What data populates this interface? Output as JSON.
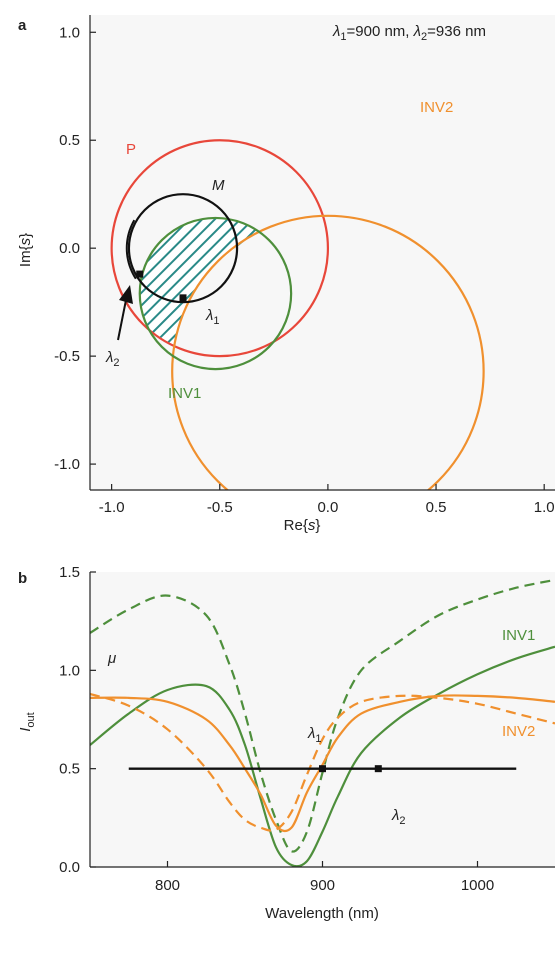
{
  "colors": {
    "red": "#e8473a",
    "orange": "#f0902e",
    "green": "#4e8f3c",
    "black": "#111111",
    "teal": "#2a8a88",
    "panel_bg": "#f7f7f7"
  },
  "chart_data": [
    {
      "panel": "a",
      "type": "scatter",
      "xlabel": {
        "pre": "Re{",
        "var": "s",
        "post": "}"
      },
      "ylabel": {
        "pre": "Im{",
        "var": "s",
        "post": "}"
      },
      "xlim": [
        -1.1,
        1.05
      ],
      "ylim": [
        -1.12,
        1.08
      ],
      "xticks": [
        -1.0,
        -0.5,
        0.0,
        0.5,
        1.0
      ],
      "xtick_labels": [
        "-1.0",
        "-0.5",
        "0.0",
        "0.5",
        "1.0"
      ],
      "yticks": [
        -1.0,
        -0.5,
        0.0,
        0.5,
        1.0
      ],
      "ytick_labels": [
        "-1.0",
        "-0.5",
        "0.0",
        "0.5",
        "1.0"
      ],
      "header": {
        "sym1": "λ",
        "sub1": "1",
        "text1": "=900 nm, ",
        "sym2": "λ",
        "sub2": "2",
        "text2": "=936 nm"
      },
      "circles": [
        {
          "name": "P",
          "cx": -0.5,
          "cy": 0.0,
          "r": 0.5,
          "color_key": "red"
        },
        {
          "name": "INV2",
          "cx": 0.0,
          "cy": -0.57,
          "r": 0.72,
          "color_key": "orange"
        },
        {
          "name": "INV1",
          "cx": -0.52,
          "cy": -0.21,
          "r": 0.35,
          "color_key": "green"
        },
        {
          "name": "M",
          "cx": -0.67,
          "cy": 0.0,
          "r": 0.25,
          "color_key": "black"
        }
      ],
      "labels": {
        "P": "P",
        "INV2": "INV2",
        "INV1": "INV1",
        "M": "M"
      },
      "points": [
        {
          "name": "λ1",
          "x": -0.67,
          "y": -0.23
        },
        {
          "name": "λ2",
          "x": -0.87,
          "y": -0.12
        }
      ],
      "point_labels": {
        "sym": "λ",
        "sub1": "1",
        "sub2": "2"
      }
    },
    {
      "panel": "b",
      "type": "line",
      "xlabel": "Wavelength (nm)",
      "ylabel": {
        "var": "I",
        "sub": "out"
      },
      "xlim": [
        750,
        1050
      ],
      "ylim": [
        0.0,
        1.5
      ],
      "xticks": [
        800,
        900,
        1000
      ],
      "xtick_labels": [
        "800",
        "900",
        "1000"
      ],
      "yticks": [
        0.0,
        0.5,
        1.0,
        1.5
      ],
      "ytick_labels": [
        "0.0",
        "0.5",
        "1.0",
        "1.5"
      ],
      "x": [
        750,
        775,
        800,
        825,
        840,
        850,
        860,
        870,
        880,
        890,
        900,
        910,
        925,
        950,
        975,
        1000,
        1025,
        1050
      ],
      "series": [
        {
          "name": "INV1",
          "style": "solid",
          "color_key": "green",
          "values": [
            0.62,
            0.78,
            0.9,
            0.92,
            0.8,
            0.62,
            0.35,
            0.1,
            0.01,
            0.03,
            0.18,
            0.36,
            0.58,
            0.76,
            0.88,
            0.98,
            1.06,
            1.12
          ]
        },
        {
          "name": "INV1",
          "style": "dashed",
          "color_key": "green",
          "values": [
            1.19,
            1.31,
            1.38,
            1.28,
            1.03,
            0.78,
            0.48,
            0.24,
            0.08,
            0.18,
            0.48,
            0.76,
            1.0,
            1.15,
            1.28,
            1.36,
            1.42,
            1.46
          ]
        },
        {
          "name": "INV2",
          "style": "solid",
          "color_key": "orange",
          "values": [
            0.86,
            0.86,
            0.84,
            0.75,
            0.62,
            0.5,
            0.37,
            0.21,
            0.2,
            0.38,
            0.52,
            0.66,
            0.78,
            0.84,
            0.87,
            0.87,
            0.86,
            0.84
          ]
        },
        {
          "name": "INV2",
          "style": "dashed",
          "color_key": "orange",
          "values": [
            0.88,
            0.82,
            0.7,
            0.5,
            0.33,
            0.24,
            0.2,
            0.19,
            0.28,
            0.47,
            0.65,
            0.76,
            0.84,
            0.87,
            0.86,
            0.83,
            0.78,
            0.73
          ]
        }
      ],
      "mu_line": {
        "y": 0.5,
        "x_start": 775,
        "x_end": 1025,
        "label": "μ"
      },
      "points": [
        {
          "name": "λ1",
          "x": 900,
          "y": 0.5
        },
        {
          "name": "λ2",
          "x": 936,
          "y": 0.5
        }
      ],
      "labels": {
        "INV1": "INV1",
        "INV2": "INV2"
      },
      "point_labels": {
        "sym": "λ",
        "sub1": "1",
        "sub2": "2"
      }
    }
  ],
  "panel_letters": {
    "a": "a",
    "b": "b"
  }
}
